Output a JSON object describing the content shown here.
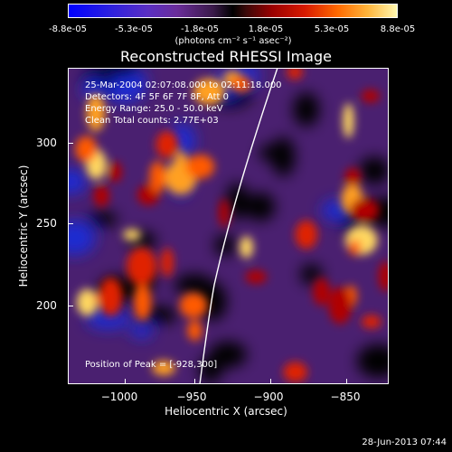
{
  "colorbar": {
    "tick_labels": [
      "-8.8e-05",
      "-5.3e-05",
      "-1.8e-05",
      "1.8e-05",
      "5.3e-05",
      "8.8e-05"
    ],
    "units": "(photons cm⁻² s⁻¹ asec⁻²)",
    "range": [
      -8.8e-05,
      8.8e-05
    ],
    "colormap": "blue-purple-black-red-yellow-white"
  },
  "plot": {
    "title": "Reconstructed RHESSI Image",
    "info_lines": [
      "25-Mar-2004 02:07:08.000 to 02:11:18.000",
      "Detectors: 4F 5F 6F 7F 8F, Att 0",
      "Energy Range: 25.0 - 50.0 keV",
      "Clean     Total counts: 2.77E+03"
    ],
    "peak_label": "Position of Peak = [-928,300]",
    "x_axis": {
      "label": "Heliocentric X (arcsec)",
      "ticks": [
        "−1000",
        "−950",
        "−900",
        "−850"
      ]
    },
    "y_axis": {
      "label": "Heliocentric Y (arcsec)",
      "ticks": [
        "300",
        "250",
        "200"
      ]
    }
  },
  "timestamp": "28-Jun-2013 07:44",
  "chart_data": {
    "type": "heatmap",
    "title": "Reconstructed RHESSI Image",
    "xlabel": "Heliocentric X (arcsec)",
    "ylabel": "Heliocentric Y (arcsec)",
    "xlim": [
      -1027,
      -833
    ],
    "ylim": [
      152,
      345
    ],
    "x_ticks": [
      -1000,
      -950,
      -900,
      -850
    ],
    "y_ticks": [
      200,
      250,
      300
    ],
    "zlim": [
      -8.8e-05,
      8.8e-05
    ],
    "peak": [
      -928,
      300
    ],
    "limb_curve": true,
    "grid": false
  }
}
